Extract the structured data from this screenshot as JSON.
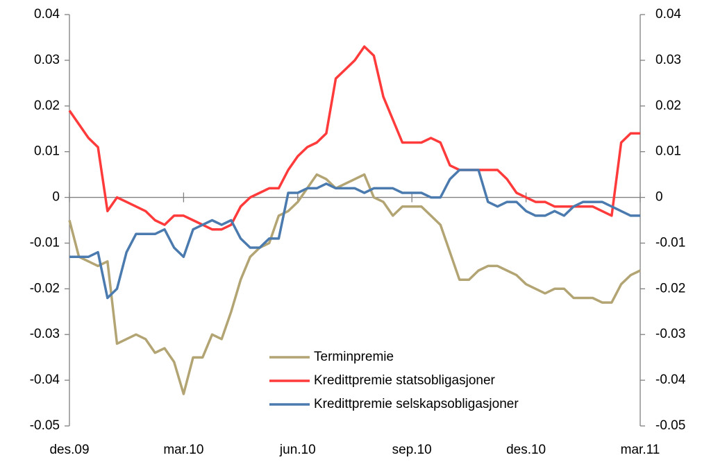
{
  "chart_data": {
    "type": "line",
    "x": [
      0,
      0.25,
      0.5,
      0.75,
      1,
      1.25,
      1.5,
      1.75,
      2,
      2.25,
      2.5,
      2.75,
      3,
      3.25,
      3.5,
      3.75,
      4,
      4.25,
      4.5,
      4.75,
      5,
      5.25,
      5.5,
      5.75,
      6,
      6.25,
      6.5,
      6.75,
      7,
      7.25,
      7.5,
      7.75,
      8,
      8.25,
      8.5,
      8.75,
      9,
      9.25,
      9.5,
      9.75,
      10,
      10.25,
      10.5,
      10.75,
      11,
      11.25,
      11.5,
      11.75,
      12,
      12.25,
      12.5,
      12.75,
      13,
      13.25,
      13.5,
      13.75,
      14,
      14.25,
      14.5,
      14.75,
      15
    ],
    "series": [
      {
        "name": "Terminpremie",
        "color": "#b3a474",
        "values": [
          -0.005,
          -0.013,
          -0.014,
          -0.015,
          -0.014,
          -0.032,
          -0.031,
          -0.03,
          -0.031,
          -0.034,
          -0.033,
          -0.036,
          -0.043,
          -0.035,
          -0.035,
          -0.03,
          -0.031,
          -0.025,
          -0.018,
          -0.013,
          -0.011,
          -0.01,
          -0.004,
          -0.003,
          -0.001,
          0.002,
          0.005,
          0.004,
          0.002,
          0.003,
          0.004,
          0.005,
          0.0,
          -0.001,
          -0.004,
          -0.002,
          -0.002,
          -0.002,
          -0.004,
          -0.006,
          -0.012,
          -0.018,
          -0.018,
          -0.016,
          -0.015,
          -0.015,
          -0.016,
          -0.017,
          -0.019,
          -0.02,
          -0.021,
          -0.02,
          -0.02,
          -0.022,
          -0.022,
          -0.022,
          -0.023,
          -0.023,
          -0.019,
          -0.017,
          -0.016
        ]
      },
      {
        "name": "Kredittpremie statsobligasjoner",
        "color": "#ff3a3a",
        "values": [
          0.019,
          0.016,
          0.013,
          0.011,
          -0.003,
          0.0,
          -0.001,
          -0.002,
          -0.003,
          -0.005,
          -0.006,
          -0.004,
          -0.004,
          -0.005,
          -0.006,
          -0.007,
          -0.007,
          -0.006,
          -0.002,
          0.0,
          0.001,
          0.002,
          0.002,
          0.006,
          0.009,
          0.011,
          0.012,
          0.014,
          0.026,
          0.028,
          0.03,
          0.033,
          0.031,
          0.022,
          0.017,
          0.012,
          0.012,
          0.012,
          0.013,
          0.012,
          0.007,
          0.006,
          0.006,
          0.006,
          0.006,
          0.006,
          0.004,
          0.001,
          0.0,
          -0.001,
          -0.001,
          -0.002,
          -0.002,
          -0.002,
          -0.002,
          -0.002,
          -0.003,
          -0.004,
          0.012,
          0.014,
          0.014
        ]
      },
      {
        "name": "Kredittpremie selskapsobligasjoner",
        "color": "#4a7aae",
        "values": [
          -0.013,
          -0.013,
          -0.013,
          -0.012,
          -0.022,
          -0.02,
          -0.012,
          -0.008,
          -0.008,
          -0.008,
          -0.007,
          -0.011,
          -0.013,
          -0.007,
          -0.006,
          -0.005,
          -0.006,
          -0.005,
          -0.009,
          -0.011,
          -0.011,
          -0.009,
          -0.009,
          0.001,
          0.001,
          0.002,
          0.002,
          0.003,
          0.002,
          0.002,
          0.002,
          0.001,
          0.002,
          0.002,
          0.002,
          0.001,
          0.001,
          0.001,
          0.0,
          0.0,
          0.004,
          0.006,
          0.006,
          0.006,
          -0.001,
          -0.002,
          -0.001,
          -0.001,
          -0.003,
          -0.004,
          -0.004,
          -0.003,
          -0.004,
          -0.002,
          -0.001,
          -0.001,
          -0.001,
          -0.002,
          -0.003,
          -0.004,
          -0.004
        ]
      }
    ],
    "xlim": [
      0,
      15
    ],
    "xticks": [
      {
        "value": 0,
        "label": "des.09"
      },
      {
        "value": 3,
        "label": "mar.10"
      },
      {
        "value": 6,
        "label": "jun.10"
      },
      {
        "value": 9,
        "label": "sep.10"
      },
      {
        "value": 12,
        "label": "des.10"
      },
      {
        "value": 15,
        "label": "mar.11"
      }
    ],
    "ylim": [
      -0.05,
      0.04
    ],
    "yticks": [
      -0.05,
      -0.04,
      -0.03,
      -0.02,
      -0.01,
      0,
      0.01,
      0.02,
      0.03,
      0.04
    ],
    "y2lim": [
      -0.05,
      0.04
    ],
    "y2ticks": [
      -0.05,
      -0.04,
      -0.03,
      -0.02,
      -0.01,
      0,
      0.01,
      0.02,
      0.03,
      0.04
    ],
    "legend": "lower center"
  }
}
